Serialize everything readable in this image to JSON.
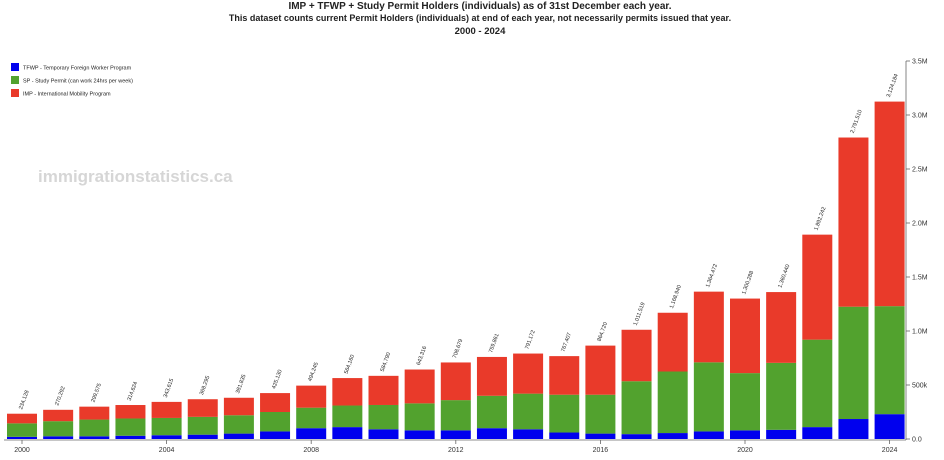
{
  "chart_data": {
    "type": "bar",
    "stacked": true,
    "title": "IMP + TFWP + Study Permit Holders (individuals) as of 31st December each year.",
    "subtitle": "This dataset counts current Permit Holders (individuals) at end of each year, not necessarily permits issued that year.",
    "period": "2000 - 2024",
    "watermark": "immigrationstatistics.ca",
    "categories": [
      2000,
      2001,
      2002,
      2003,
      2004,
      2005,
      2006,
      2007,
      2008,
      2009,
      2010,
      2011,
      2012,
      2013,
      2014,
      2015,
      2016,
      2017,
      2018,
      2019,
      2020,
      2021,
      2022,
      2023,
      2024
    ],
    "x_tick_labels": [
      {
        "year": 2000,
        "label": "2000"
      },
      {
        "year": 2004,
        "label": "2004"
      },
      {
        "year": 2008,
        "label": "2008"
      },
      {
        "year": 2012,
        "label": "2012"
      },
      {
        "year": 2016,
        "label": "2016"
      },
      {
        "year": 2020,
        "label": "2020"
      },
      {
        "year": 2024,
        "label": "2024"
      }
    ],
    "series": [
      {
        "name": "TFWP - Temporary Foreign Worker Program",
        "color": "#0000ee",
        "values": [
          20000,
          25000,
          25000,
          30000,
          35000,
          40000,
          50000,
          70000,
          100000,
          110000,
          90000,
          80000,
          80000,
          100000,
          90000,
          60000,
          50000,
          45000,
          55000,
          70000,
          80000,
          85000,
          110000,
          185000,
          230000
        ]
      },
      {
        "name": "SP - Study Permit (can work 24hrs per week)",
        "color": "#52a22e",
        "values": [
          125000,
          140000,
          155000,
          160000,
          160000,
          165000,
          170000,
          180000,
          190000,
          200000,
          225000,
          250000,
          280000,
          300000,
          330000,
          350000,
          360000,
          490000,
          570000,
          640000,
          530000,
          620000,
          810000,
          1040000,
          1000000
        ]
      },
      {
        "name": "IMP - International Mobility Program",
        "color": "#e93a2a",
        "values": [
          89128,
          105292,
          119575,
          124624,
          148615,
          163295,
          161835,
          175130,
          204245,
          254160,
          269790,
          313316,
          348679,
          359861,
          371172,
          357407,
          454720,
          476519,
          543940,
          654472,
          690288,
          655440,
          972242,
          1566510,
          1894184
        ]
      }
    ],
    "total_labels": [
      "234,128",
      "270,292",
      "299,575",
      "314,624",
      "343,615",
      "368,295",
      "381,835",
      "425,130",
      "494,245",
      "564,160",
      "584,790",
      "643,316",
      "708,679",
      "759,861",
      "791,172",
      "767,407",
      "864,720",
      "1,011,519",
      "1,168,940",
      "1,364,472",
      "1,300,288",
      "1,360,440",
      "1,892,242",
      "2,791,510",
      "3,124,184"
    ],
    "y_axis": {
      "position": "right",
      "range": [
        0,
        3500000
      ],
      "ticks": [
        {
          "value": 0,
          "label": "0.0"
        },
        {
          "value": 500000,
          "label": "500k"
        },
        {
          "value": 1000000,
          "label": "1.0M"
        },
        {
          "value": 1500000,
          "label": "1.5M"
        },
        {
          "value": 2000000,
          "label": "2.0M"
        },
        {
          "value": 2500000,
          "label": "2.5M"
        },
        {
          "value": 3000000,
          "label": "3.0M"
        },
        {
          "value": 3500000,
          "label": "3.5M"
        }
      ]
    },
    "legend_position": "top-left",
    "grid": false
  }
}
